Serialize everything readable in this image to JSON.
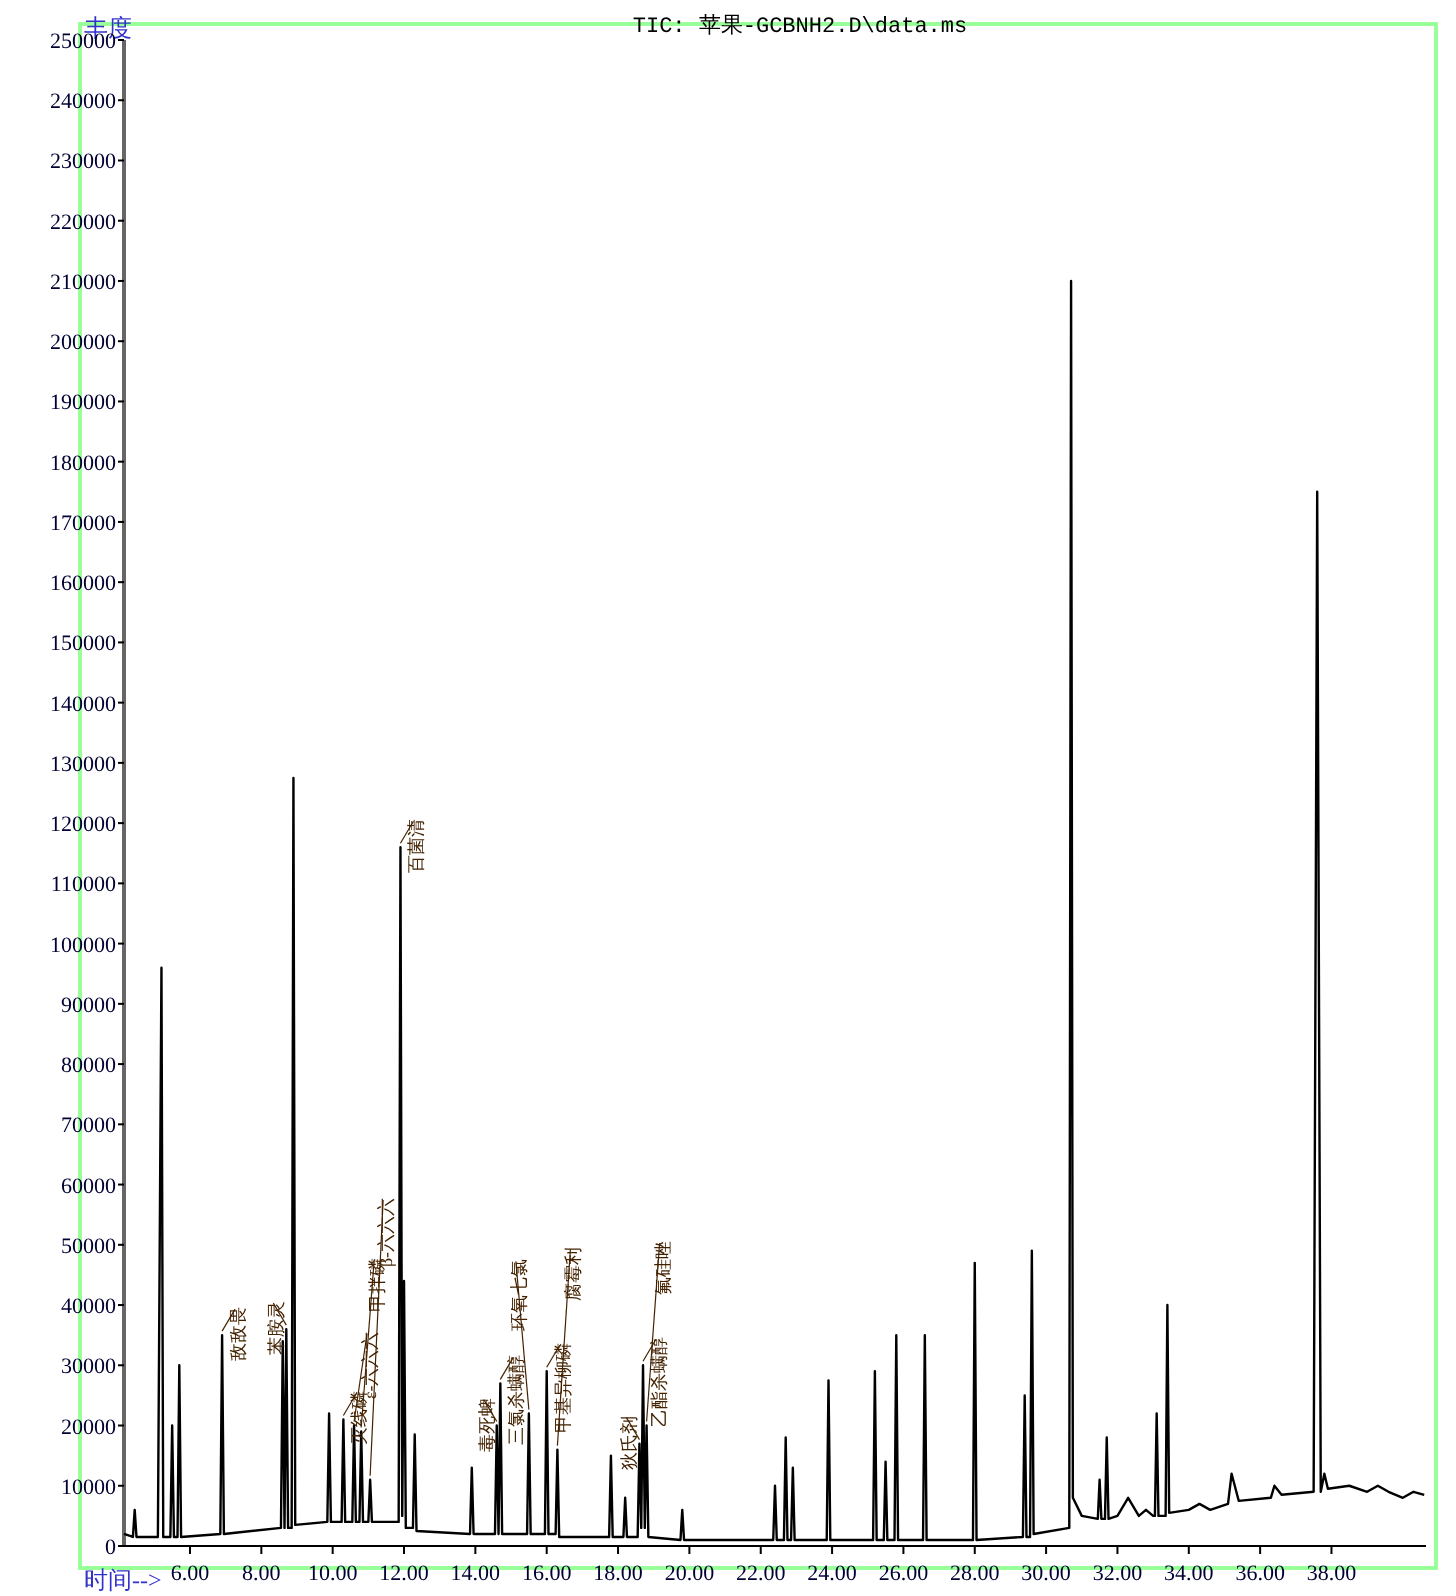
{
  "chart_data": {
    "type": "line",
    "title": "TIC: 苹果-GCBNH2.D\\data.ms",
    "xlabel": "时间-->",
    "ylabel": "丰度",
    "color": "#000000",
    "xlim": [
      4.15,
      40.65
    ],
    "ylim": [
      0,
      250000
    ],
    "xticks": [
      {
        "value": 6,
        "label": "6.00"
      },
      {
        "value": 8,
        "label": "8.00"
      },
      {
        "value": 10,
        "label": "10.00"
      },
      {
        "value": 12,
        "label": "12.00"
      },
      {
        "value": 14,
        "label": "14.00"
      },
      {
        "value": 16,
        "label": "16.00"
      },
      {
        "value": 18,
        "label": "18.00"
      },
      {
        "value": 20,
        "label": "20.00"
      },
      {
        "value": 22,
        "label": "22.00"
      },
      {
        "value": 24,
        "label": "24.00"
      },
      {
        "value": 26,
        "label": "26.00"
      },
      {
        "value": 28,
        "label": "28.00"
      },
      {
        "value": 30,
        "label": "30.00"
      },
      {
        "value": 32,
        "label": "32.00"
      },
      {
        "value": 34,
        "label": "34.00"
      },
      {
        "value": 36,
        "label": "36.00"
      },
      {
        "value": 38,
        "label": "38.00"
      }
    ],
    "yticks": [
      0,
      10000,
      20000,
      30000,
      40000,
      50000,
      60000,
      70000,
      80000,
      90000,
      100000,
      110000,
      120000,
      130000,
      140000,
      150000,
      160000,
      170000,
      180000,
      190000,
      200000,
      210000,
      220000,
      230000,
      240000,
      250000
    ],
    "x": [
      4.15,
      4.4,
      4.45,
      4.5,
      5.1,
      5.2,
      5.25,
      5.45,
      5.5,
      5.55,
      5.65,
      5.7,
      5.75,
      6.85,
      6.9,
      6.95,
      8.55,
      8.6,
      8.65,
      8.7,
      8.75,
      8.85,
      8.9,
      8.95,
      9.85,
      9.9,
      9.95,
      10.25,
      10.3,
      10.35,
      10.55,
      10.6,
      10.65,
      10.75,
      10.8,
      10.85,
      11.0,
      11.05,
      11.1,
      11.85,
      11.9,
      11.95,
      12.0,
      12.05,
      12.25,
      12.3,
      12.35,
      13.85,
      13.9,
      13.95,
      14.55,
      14.6,
      14.65,
      14.7,
      14.75,
      15.45,
      15.5,
      15.55,
      15.95,
      16.0,
      16.05,
      16.25,
      16.3,
      16.35,
      17.75,
      17.8,
      17.85,
      18.15,
      18.2,
      18.25,
      18.55,
      18.6,
      18.65,
      18.7,
      18.75,
      18.8,
      18.85,
      19.75,
      19.8,
      19.85,
      22.35,
      22.4,
      22.45,
      22.65,
      22.7,
      22.75,
      22.85,
      22.9,
      22.95,
      23.85,
      23.9,
      23.95,
      25.15,
      25.2,
      25.25,
      25.45,
      25.5,
      25.55,
      25.75,
      25.8,
      25.85,
      26.55,
      26.6,
      26.65,
      27.95,
      28.0,
      28.05,
      29.35,
      29.4,
      29.45,
      29.55,
      29.6,
      29.65,
      30.65,
      30.7,
      30.75,
      31.0,
      31.45,
      31.5,
      31.55,
      31.65,
      31.7,
      31.75,
      32.0,
      32.3,
      32.6,
      32.8,
      33.0,
      33.05,
      33.1,
      33.15,
      33.35,
      33.4,
      33.45,
      34.0,
      34.3,
      34.6,
      35.1,
      35.2,
      35.4,
      36.3,
      36.4,
      36.6,
      37.5,
      37.6,
      37.7,
      37.8,
      37.9,
      38.5,
      39.0,
      39.3,
      39.6,
      40.0,
      40.3,
      40.6
    ],
    "values": [
      2000,
      1500,
      6000,
      1500,
      1500,
      96000,
      1500,
      1500,
      20000,
      1500,
      1500,
      30000,
      1500,
      2000,
      35000,
      2000,
      3000,
      34000,
      3000,
      36000,
      3000,
      3000,
      127500,
      3500,
      4000,
      22000,
      4000,
      4000,
      21000,
      4000,
      4000,
      20000,
      4000,
      4000,
      19000,
      4000,
      4000,
      11000,
      4000,
      4000,
      116000,
      5000,
      44000,
      3000,
      3000,
      18500,
      2500,
      2000,
      13000,
      2000,
      2000,
      20000,
      2000,
      27000,
      2000,
      2000,
      22000,
      2000,
      2000,
      29000,
      2000,
      2000,
      16000,
      1500,
      1500,
      15000,
      1500,
      1500,
      8000,
      1500,
      1500,
      17000,
      3000,
      30000,
      3000,
      20000,
      1500,
      1000,
      6000,
      1000,
      1000,
      10000,
      1000,
      1000,
      18000,
      1000,
      1000,
      13000,
      1000,
      1000,
      27500,
      1000,
      1000,
      29000,
      1000,
      1000,
      14000,
      1000,
      1000,
      35000,
      1000,
      1000,
      35000,
      1000,
      1000,
      47000,
      1000,
      1500,
      25000,
      1500,
      1500,
      49000,
      2000,
      3000,
      210000,
      8000,
      5000,
      4500,
      11000,
      4500,
      4500,
      18000,
      4500,
      5000,
      8000,
      5000,
      6000,
      5000,
      5000,
      22000,
      5000,
      5000,
      40000,
      5500,
      6000,
      7000,
      6000,
      7000,
      12000,
      7500,
      8000,
      10000,
      8500,
      9000,
      175000,
      9000,
      12000,
      9500,
      10000,
      9000,
      10000,
      9000,
      8000,
      9000,
      8500
    ],
    "annotations": [
      {
        "text": "敌敌畏",
        "x": 6.9,
        "y": 35000
      },
      {
        "text": "苯胺灵",
        "x": 8.7,
        "y": 36000
      },
      {
        "text": "灭线磷",
        "x": 10.3,
        "y": 21000
      },
      {
        "text": "ε-六六六",
        "x": 10.6,
        "y": 20000
      },
      {
        "text": "甲拌磷",
        "x": 10.8,
        "y": 19000
      },
      {
        "text": "β-六六六",
        "x": 11.05,
        "y": 11000
      },
      {
        "text": "百菌清",
        "x": 11.9,
        "y": 116000
      },
      {
        "text": "毒死蜱",
        "x": 14.6,
        "y": 20000
      },
      {
        "text": "三氯杀螨醇",
        "x": 14.7,
        "y": 27000
      },
      {
        "text": "环氧七氯",
        "x": 15.5,
        "y": 22000
      },
      {
        "text": "甲基异柳磷",
        "x": 16.0,
        "y": 29000
      },
      {
        "text": "腐霉利",
        "x": 16.3,
        "y": 16000
      },
      {
        "text": "狄氏剂",
        "x": 18.6,
        "y": 17000
      },
      {
        "text": "乙酯杀螨醇",
        "x": 18.7,
        "y": 30000
      },
      {
        "text": "氟硅唑",
        "x": 18.8,
        "y": 20000
      }
    ]
  }
}
